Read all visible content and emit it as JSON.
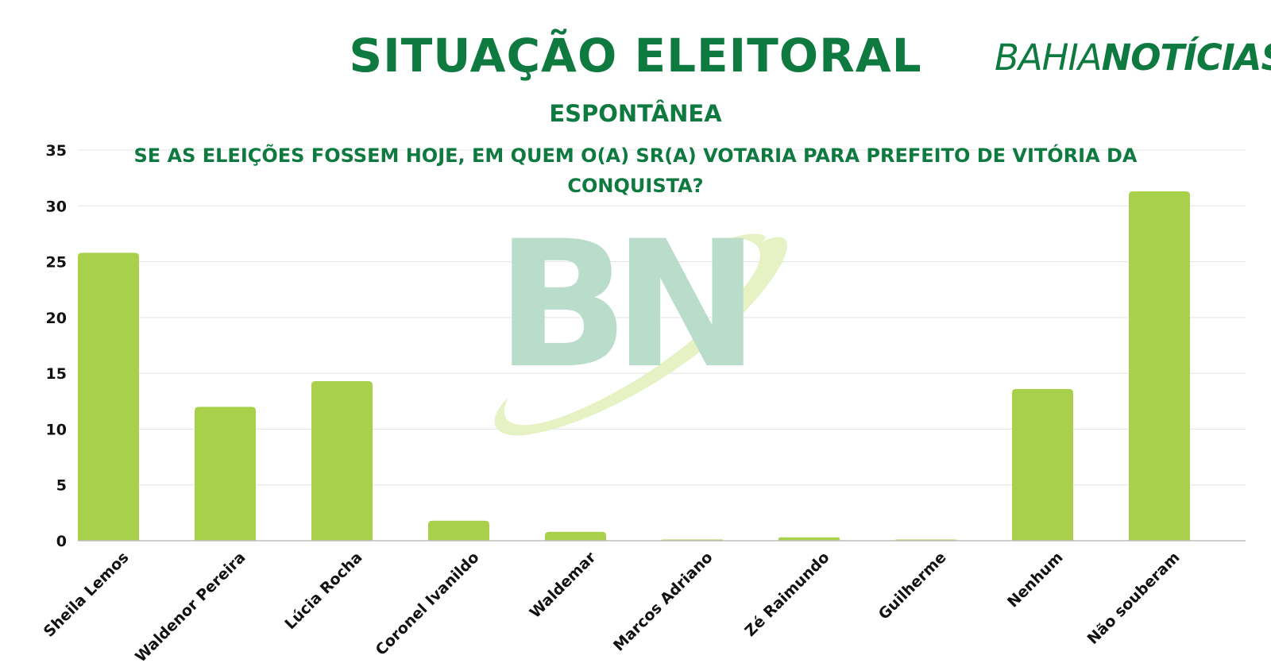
{
  "colors": {
    "brand_green": "#0f7a3f",
    "bar": "#a9d04a",
    "grid": "#e3e3e3",
    "axis_text": "#111111",
    "watermark": "#b9dccb",
    "swoosh": "#e6f1c4"
  },
  "header": {
    "title": "SITUAÇÃO ELEITORAL",
    "subtitle": "ESPONTÂNEA",
    "question": "SE AS ELEIÇÕES FOSSEM HOJE, EM QUEM O(A) SR(A) VOTARIA PARA PREFEITO DE VITÓRIA DA CONQUISTA?",
    "logo_light": "BAHIA",
    "logo_heavy": "NOTÍCIAS"
  },
  "watermark": {
    "text": "BN"
  },
  "chart_data": {
    "type": "bar",
    "categories": [
      "Sheila Lemos",
      "Waldenor Pereira",
      "Lúcia Rocha",
      "Coronel Ivanildo",
      "Waldemar",
      "Marcos Adriano",
      "Zé Raimundo",
      "Guilherme",
      "Nenhum",
      "Não souberam"
    ],
    "values": [
      25.8,
      12.0,
      14.3,
      1.8,
      0.8,
      0.1,
      0.3,
      0.1,
      13.6,
      31.3
    ],
    "title": "SITUAÇÃO ELEITORAL",
    "ylim": [
      0,
      35
    ],
    "yticks": [
      0,
      5,
      10,
      15,
      20,
      25,
      30,
      35
    ],
    "grid": true
  }
}
